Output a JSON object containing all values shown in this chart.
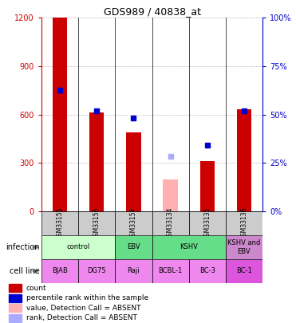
{
  "title": "GDS989 / 40838_at",
  "samples": [
    "GSM33155",
    "GSM33156",
    "GSM33154",
    "GSM33134",
    "GSM33135",
    "GSM33136"
  ],
  "bar_values": [
    1200,
    610,
    490,
    null,
    310,
    630
  ],
  "bar_absent_values": [
    null,
    null,
    null,
    200,
    null,
    null
  ],
  "bar_color": "#cc0000",
  "bar_absent_color": "#ffb0b0",
  "dot_values": [
    750,
    620,
    580,
    null,
    410,
    620
  ],
  "dot_absent_values": [
    null,
    null,
    null,
    340,
    null,
    null
  ],
  "dot_color": "#0000cc",
  "dot_absent_color": "#aaaaff",
  "ylim_left": [
    0,
    1200
  ],
  "ylim_right": [
    0,
    100
  ],
  "yticks_left": [
    0,
    300,
    600,
    900,
    1200
  ],
  "yticks_right": [
    0,
    25,
    50,
    75,
    100
  ],
  "ytick_labels_left": [
    "0",
    "300",
    "600",
    "900",
    "1200"
  ],
  "ytick_labels_right": [
    "0%",
    "25%",
    "50%",
    "75%",
    "100%"
  ],
  "infection_layout": [
    {
      "label": "control",
      "start": 0,
      "end": 2,
      "color": "#ccffcc"
    },
    {
      "label": "EBV",
      "start": 2,
      "end": 3,
      "color": "#66dd88"
    },
    {
      "label": "KSHV",
      "start": 3,
      "end": 5,
      "color": "#66dd88"
    },
    {
      "label": "KSHV and\nEBV",
      "start": 5,
      "end": 6,
      "color": "#cc88cc"
    }
  ],
  "cell_line_layout": [
    {
      "label": "BJAB",
      "start": 0,
      "end": 1,
      "color": "#ee88ee"
    },
    {
      "label": "DG75",
      "start": 1,
      "end": 2,
      "color": "#ee88ee"
    },
    {
      "label": "Raji",
      "start": 2,
      "end": 3,
      "color": "#ee88ee"
    },
    {
      "label": "BCBL-1",
      "start": 3,
      "end": 4,
      "color": "#ee88ee"
    },
    {
      "label": "BC-3",
      "start": 4,
      "end": 5,
      "color": "#ee88ee"
    },
    {
      "label": "BC-1",
      "start": 5,
      "end": 6,
      "color": "#dd55dd"
    }
  ],
  "legend_items": [
    {
      "color": "#cc0000",
      "label": "count"
    },
    {
      "color": "#0000cc",
      "label": "percentile rank within the sample"
    },
    {
      "color": "#ffb0b0",
      "label": "value, Detection Call = ABSENT"
    },
    {
      "color": "#aaaaff",
      "label": "rank, Detection Call = ABSENT"
    }
  ],
  "bar_width": 0.4,
  "background_color": "#ffffff",
  "sample_row_color": "#cccccc",
  "n_samples": 6
}
